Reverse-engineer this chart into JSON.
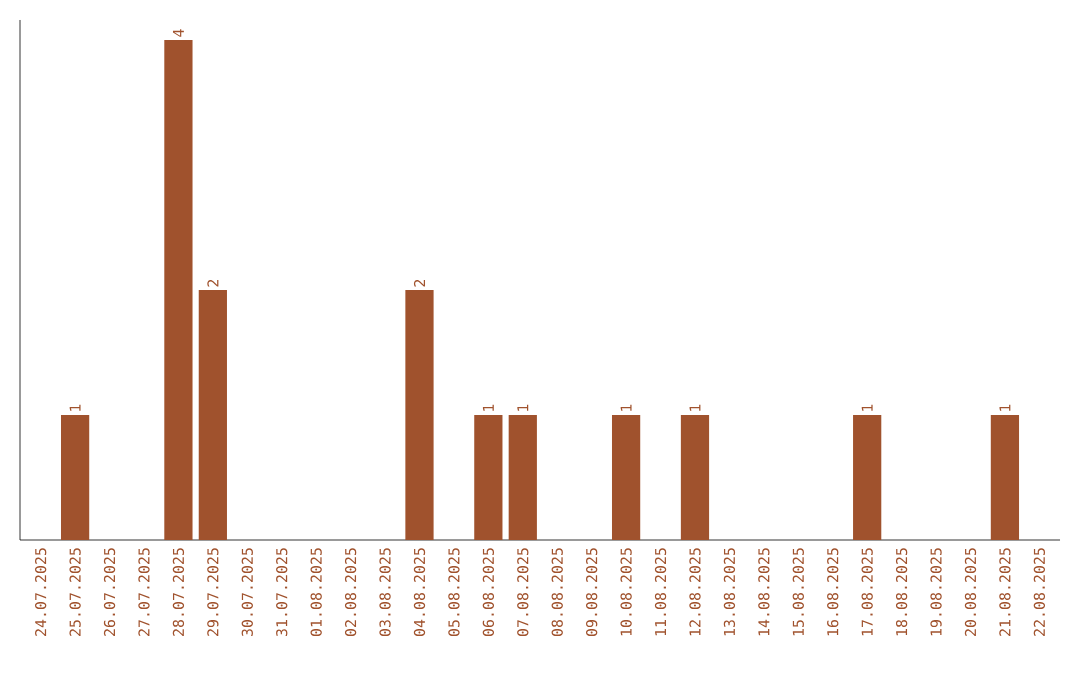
{
  "chart_data": {
    "type": "bar",
    "categories": [
      "24.07.2025",
      "25.07.2025",
      "26.07.2025",
      "27.07.2025",
      "28.07.2025",
      "29.07.2025",
      "30.07.2025",
      "31.07.2025",
      "01.08.2025",
      "02.08.2025",
      "03.08.2025",
      "04.08.2025",
      "05.08.2025",
      "06.08.2025",
      "07.08.2025",
      "08.08.2025",
      "09.08.2025",
      "10.08.2025",
      "11.08.2025",
      "12.08.2025",
      "13.08.2025",
      "14.08.2025",
      "15.08.2025",
      "16.08.2025",
      "17.08.2025",
      "18.08.2025",
      "19.08.2025",
      "20.08.2025",
      "21.08.2025",
      "22.08.2025"
    ],
    "values": [
      0,
      1,
      0,
      0,
      4,
      2,
      0,
      0,
      0,
      0,
      0,
      2,
      0,
      1,
      1,
      0,
      0,
      1,
      0,
      1,
      0,
      0,
      0,
      0,
      1,
      0,
      0,
      0,
      1,
      0
    ],
    "value_labels": [
      null,
      "1",
      null,
      null,
      "4",
      "2",
      null,
      null,
      null,
      null,
      null,
      "2",
      null,
      "1",
      "1",
      null,
      null,
      "1",
      null,
      "1",
      null,
      null,
      null,
      null,
      "1",
      null,
      null,
      null,
      "1",
      null
    ],
    "color": "#a0522d",
    "tick_labels": "x"
  }
}
